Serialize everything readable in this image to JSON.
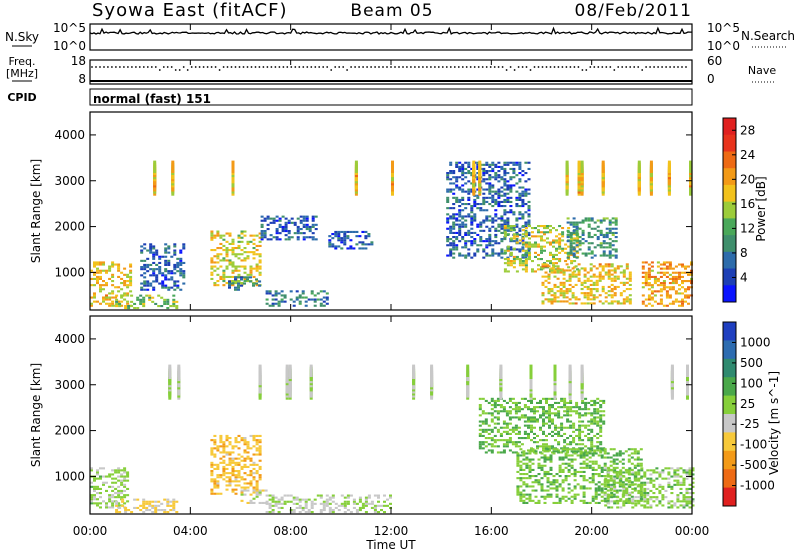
{
  "header": {
    "station": "Syowa East (fitACF)",
    "beam": "Beam 05",
    "date": "08/Feb/2011"
  },
  "noise_panel": {
    "left_label": "N.Sky",
    "right_label": "N.Search",
    "ticks_left": [
      "10^5",
      "10^0"
    ],
    "ticks_right": [
      "10^5",
      "10^0"
    ]
  },
  "freq_panel": {
    "left_label_1": "Freq.",
    "left_label_2": "[MHz]",
    "right_label": "Nave",
    "ticks_left": [
      "18",
      "8"
    ],
    "ticks_right": [
      "60",
      "0"
    ]
  },
  "cpid_panel": {
    "label": "CPID",
    "text": "normal (fast) 151"
  },
  "x_axis": {
    "label": "Time UT",
    "ticks": [
      "00:00",
      "04:00",
      "08:00",
      "12:00",
      "16:00",
      "20:00",
      "00:00"
    ]
  },
  "chart_data": [
    {
      "type": "heatmap",
      "title": "",
      "xlabel": "Time UT",
      "ylabel": "Slant Range [km]",
      "xlim": [
        0,
        24
      ],
      "ylim": [
        180,
        4500
      ],
      "yticks": [
        1000,
        2000,
        3000,
        4000
      ],
      "colorbar": {
        "label": "Power [dB]",
        "ticks": [
          4,
          8,
          12,
          16,
          20,
          24,
          28
        ],
        "range": [
          0,
          30
        ],
        "colors": [
          "#0a14ff",
          "#1d3fb5",
          "#2d6cab",
          "#3f8f6c",
          "#4aa85a",
          "#9ccc3a",
          "#f2c21c",
          "#f39a17",
          "#ee6a14",
          "#e8331c",
          "#e0201f"
        ]
      },
      "regions": [
        {
          "t": [
            0.0,
            1.6
          ],
          "r": [
            250,
            1200
          ],
          "v": 18
        },
        {
          "t": [
            1.0,
            3.5
          ],
          "r": [
            200,
            500
          ],
          "v": 14
        },
        {
          "t": [
            2.0,
            3.8
          ],
          "r": [
            600,
            1600
          ],
          "v": 6
        },
        {
          "t": [
            4.8,
            6.8
          ],
          "r": [
            700,
            1900
          ],
          "v": 17
        },
        {
          "t": [
            5.5,
            6.8
          ],
          "r": [
            600,
            900
          ],
          "v": 8
        },
        {
          "t": [
            6.8,
            9.0
          ],
          "r": [
            1700,
            2200
          ],
          "v": 6
        },
        {
          "t": [
            7.0,
            9.5
          ],
          "r": [
            250,
            600
          ],
          "v": 8
        },
        {
          "t": [
            9.5,
            11.2
          ],
          "r": [
            1500,
            1900
          ],
          "v": 6
        },
        {
          "t": [
            14.2,
            17.5
          ],
          "r": [
            1300,
            3400
          ],
          "v": 6
        },
        {
          "t": [
            16.5,
            19.5
          ],
          "r": [
            1000,
            2000
          ],
          "v": 16
        },
        {
          "t": [
            18.0,
            21.5
          ],
          "r": [
            300,
            1200
          ],
          "v": 18
        },
        {
          "t": [
            19.0,
            21.0
          ],
          "r": [
            1300,
            2200
          ],
          "v": 10
        },
        {
          "t": [
            22.0,
            24.0
          ],
          "r": [
            250,
            1200
          ],
          "v": 20
        },
        {
          "t": [
            0.0,
            24.0
          ],
          "r": [
            2900,
            3400
          ],
          "v": 18
        }
      ]
    },
    {
      "type": "heatmap",
      "title": "",
      "xlabel": "Time UT",
      "ylabel": "Slant Range [km]",
      "xlim": [
        0,
        24
      ],
      "ylim": [
        180,
        4500
      ],
      "yticks": [
        1000,
        2000,
        3000,
        4000
      ],
      "colorbar": {
        "label": "Velocity [m s^-1]",
        "ticks": [
          1000,
          500,
          100,
          25,
          -25,
          -100,
          -500,
          -1000
        ],
        "range": [
          -1200,
          1200
        ],
        "colors": [
          "#1f3fc0",
          "#2d6cb0",
          "#2f8a6f",
          "#4aa84a",
          "#86cf3a",
          "#c8c8c8",
          "#f7c93a",
          "#f39a17",
          "#ee6a14",
          "#e0201f"
        ]
      },
      "regions": [
        {
          "t": [
            0.0,
            1.5
          ],
          "r": [
            300,
            1200
          ],
          "v": 80
        },
        {
          "t": [
            1.0,
            3.5
          ],
          "r": [
            200,
            500
          ],
          "v": -300
        },
        {
          "t": [
            4.8,
            6.8
          ],
          "r": [
            600,
            1900
          ],
          "v": -400
        },
        {
          "t": [
            6.0,
            7.0
          ],
          "r": [
            400,
            700
          ],
          "v": -150
        },
        {
          "t": [
            7.0,
            12.0
          ],
          "r": [
            200,
            600
          ],
          "v": -30
        },
        {
          "t": [
            15.5,
            20.5
          ],
          "r": [
            1500,
            2700
          ],
          "v": 250
        },
        {
          "t": [
            17.0,
            22.0
          ],
          "r": [
            400,
            1600
          ],
          "v": 200
        },
        {
          "t": [
            20.5,
            24.0
          ],
          "r": [
            300,
            1200
          ],
          "v": 120
        },
        {
          "t": [
            0.0,
            24.0
          ],
          "r": [
            2900,
            3400
          ],
          "v": -60
        }
      ]
    }
  ]
}
